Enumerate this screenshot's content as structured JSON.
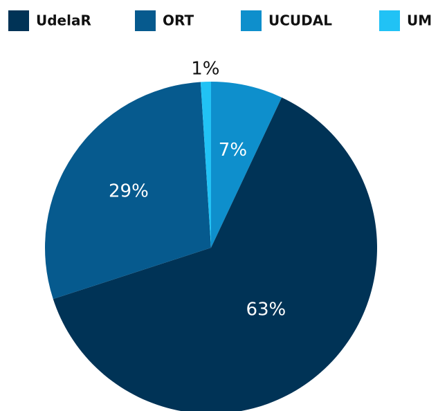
{
  "chart_data": {
    "type": "pie",
    "categories": [
      "UdelaR",
      "ORT",
      "UCUDAL",
      "UM"
    ],
    "values": [
      63,
      29,
      7,
      1
    ],
    "value_labels": [
      "63%",
      "29%",
      "7%",
      "1%"
    ],
    "colors": [
      "#003356",
      "#065a8e",
      "#0e8fcc",
      "#21c2f5"
    ],
    "legend": "top"
  }
}
